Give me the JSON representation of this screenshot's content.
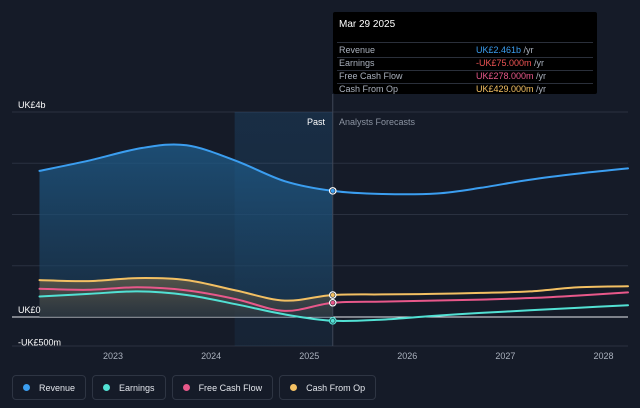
{
  "tooltip": {
    "date": "Mar 29 2025",
    "rows": [
      {
        "label": "Revenue",
        "value": "UK£2.461b",
        "unit": " /yr",
        "color": "#3b9ef0"
      },
      {
        "label": "Earnings",
        "value": "-UK£75.000m",
        "unit": " /yr",
        "color": "#f05454"
      },
      {
        "label": "Free Cash Flow",
        "value": "UK£278.000m",
        "unit": " /yr",
        "color": "#e8588a"
      },
      {
        "label": "Cash From Op",
        "value": "UK£429.000m",
        "unit": " /yr",
        "color": "#f3c063"
      }
    ]
  },
  "regions": {
    "past_label": "Past",
    "forecast_label": "Analysts Forecasts"
  },
  "legend": [
    {
      "label": "Revenue",
      "color": "#3b9ef0",
      "icon": "revenue-dot-icon"
    },
    {
      "label": "Earnings",
      "color": "#52e1d4",
      "icon": "earnings-dot-icon"
    },
    {
      "label": "Free Cash Flow",
      "color": "#e8588a",
      "icon": "free-cash-flow-dot-icon"
    },
    {
      "label": "Cash From Op",
      "color": "#f3c063",
      "icon": "cash-from-op-dot-icon"
    }
  ],
  "chart_data": {
    "type": "area",
    "ylim": [
      -0.5,
      4.0
    ],
    "y_unit": "UK£ billions",
    "y_tick_labels": [
      {
        "value": 4,
        "label": "UK£4b"
      },
      {
        "value": 0,
        "label": "UK£0"
      },
      {
        "value": -0.5,
        "label": "-UK£500m"
      }
    ],
    "x_tick_labels": [
      "2023",
      "2024",
      "2025",
      "2026",
      "2027",
      "2028"
    ],
    "x_ticks": [
      2023.0,
      2024.0,
      2025.0,
      2026.0,
      2027.0,
      2028.0
    ],
    "xlim": [
      2021.97,
      2028.25
    ],
    "past_end": 2025.24,
    "highlight_start": 2024.24,
    "series": [
      {
        "name": "Revenue",
        "color": "#3b9ef0",
        "x": [
          2022.25,
          2022.75,
          2023.3,
          2023.75,
          2024.25,
          2024.75,
          2025.24,
          2025.75,
          2026.3,
          2026.75,
          2027.25,
          2027.75,
          2028.25
        ],
        "y": [
          2.85,
          3.05,
          3.3,
          3.35,
          3.05,
          2.65,
          2.46,
          2.4,
          2.41,
          2.52,
          2.68,
          2.8,
          2.9
        ]
      },
      {
        "name": "Earnings",
        "color": "#52e1d4",
        "x": [
          2022.25,
          2022.75,
          2023.25,
          2023.75,
          2024.25,
          2024.75,
          2025.24,
          2025.75,
          2026.25,
          2026.75,
          2027.25,
          2027.75,
          2028.25
        ],
        "y": [
          0.4,
          0.45,
          0.5,
          0.43,
          0.25,
          0.05,
          -0.075,
          -0.05,
          0.02,
          0.08,
          0.13,
          0.18,
          0.23
        ]
      },
      {
        "name": "Free Cash Flow",
        "color": "#e8588a",
        "x": [
          2022.25,
          2022.75,
          2023.25,
          2023.75,
          2024.25,
          2024.75,
          2025.24,
          2025.75,
          2026.25,
          2026.75,
          2027.25,
          2027.75,
          2028.25
        ],
        "y": [
          0.55,
          0.53,
          0.58,
          0.52,
          0.35,
          0.12,
          0.278,
          0.3,
          0.32,
          0.34,
          0.37,
          0.42,
          0.48
        ]
      },
      {
        "name": "Cash From Op",
        "color": "#f3c063",
        "x": [
          2022.25,
          2022.75,
          2023.25,
          2023.75,
          2024.25,
          2024.75,
          2025.24,
          2025.75,
          2026.25,
          2026.75,
          2027.25,
          2027.75,
          2028.25
        ],
        "y": [
          0.72,
          0.7,
          0.76,
          0.72,
          0.52,
          0.32,
          0.429,
          0.44,
          0.45,
          0.47,
          0.5,
          0.58,
          0.6
        ]
      }
    ],
    "markers": [
      {
        "series": "Revenue",
        "x": 2025.24,
        "y": 2.461
      },
      {
        "series": "Earnings",
        "x": 2025.24,
        "y": -0.075
      },
      {
        "series": "Free Cash Flow",
        "x": 2025.24,
        "y": 0.278
      },
      {
        "series": "Cash From Op",
        "x": 2025.24,
        "y": 0.429
      }
    ]
  }
}
